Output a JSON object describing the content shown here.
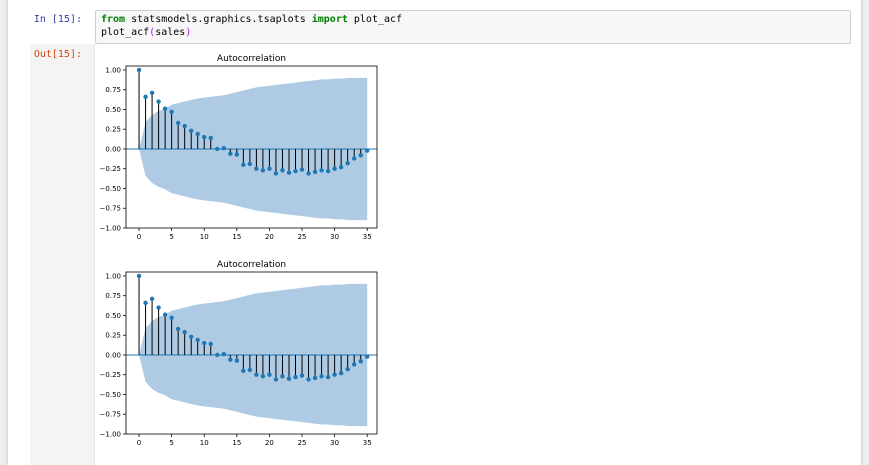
{
  "cell": {
    "in_prompt": "In [15]:",
    "out_prompt": "Out[15]:",
    "code_line1": {
      "kw1": "from",
      "module": " statsmodels.graphics.tsaplots ",
      "kw2": "import",
      "name": " plot_acf"
    },
    "code_line2": {
      "func": "plot_acf",
      "open": "(",
      "arg": "sales",
      "close": ")"
    }
  },
  "chart_data": [
    {
      "type": "stem",
      "title": "Autocorrelation",
      "xlabel": "",
      "ylabel": "",
      "x_ticks": [
        0,
        5,
        10,
        15,
        20,
        25,
        30,
        35
      ],
      "y_ticks": [
        "1.00",
        "0.75",
        "0.50",
        "0.25",
        "0.00",
        "−0.25",
        "−0.50",
        "−0.75",
        "−1.00"
      ],
      "xlim": [
        -2,
        36.5
      ],
      "ylim": [
        -1.0,
        1.05
      ],
      "lags": [
        0,
        1,
        2,
        3,
        4,
        5,
        6,
        7,
        8,
        9,
        10,
        11,
        12,
        13,
        14,
        15,
        16,
        17,
        18,
        19,
        20,
        21,
        22,
        23,
        24,
        25,
        26,
        27,
        28,
        29,
        30,
        31,
        32,
        33,
        34,
        35
      ],
      "values": [
        1.0,
        0.66,
        0.71,
        0.6,
        0.51,
        0.47,
        0.33,
        0.29,
        0.23,
        0.19,
        0.15,
        0.14,
        0.0,
        0.01,
        -0.06,
        -0.07,
        -0.2,
        -0.19,
        -0.25,
        -0.27,
        -0.25,
        -0.31,
        -0.27,
        -0.3,
        -0.28,
        -0.26,
        -0.31,
        -0.29,
        -0.27,
        -0.28,
        -0.25,
        -0.23,
        -0.18,
        -0.12,
        -0.08,
        -0.02
      ],
      "conf_upper": [
        0.0,
        0.34,
        0.43,
        0.48,
        0.51,
        0.56,
        0.58,
        0.6,
        0.62,
        0.64,
        0.65,
        0.66,
        0.67,
        0.68,
        0.7,
        0.72,
        0.74,
        0.76,
        0.78,
        0.79,
        0.8,
        0.81,
        0.82,
        0.83,
        0.84,
        0.85,
        0.86,
        0.87,
        0.88,
        0.88,
        0.89,
        0.89,
        0.9,
        0.9,
        0.9,
        0.9
      ],
      "colors": {
        "stem": "#000000",
        "marker": "#1f77b4",
        "band": "#aecbe3",
        "zero_line": "#1f77b4"
      }
    },
    {
      "type": "stem",
      "title": "Autocorrelation",
      "xlabel": "",
      "ylabel": "",
      "x_ticks": [
        0,
        5,
        10,
        15,
        20,
        25,
        30,
        35
      ],
      "y_ticks": [
        "1.00",
        "0.75",
        "0.50",
        "0.25",
        "0.00",
        "−0.25",
        "−0.50",
        "−0.75",
        "−1.00"
      ],
      "xlim": [
        -2,
        36.5
      ],
      "ylim": [
        -1.0,
        1.05
      ],
      "lags": [
        0,
        1,
        2,
        3,
        4,
        5,
        6,
        7,
        8,
        9,
        10,
        11,
        12,
        13,
        14,
        15,
        16,
        17,
        18,
        19,
        20,
        21,
        22,
        23,
        24,
        25,
        26,
        27,
        28,
        29,
        30,
        31,
        32,
        33,
        34,
        35
      ],
      "values": [
        1.0,
        0.66,
        0.71,
        0.6,
        0.51,
        0.47,
        0.33,
        0.29,
        0.23,
        0.19,
        0.15,
        0.14,
        0.0,
        0.01,
        -0.06,
        -0.07,
        -0.2,
        -0.19,
        -0.25,
        -0.27,
        -0.25,
        -0.31,
        -0.27,
        -0.3,
        -0.28,
        -0.26,
        -0.31,
        -0.29,
        -0.27,
        -0.28,
        -0.25,
        -0.23,
        -0.18,
        -0.12,
        -0.08,
        -0.02
      ],
      "conf_upper": [
        0.0,
        0.34,
        0.43,
        0.48,
        0.51,
        0.56,
        0.58,
        0.6,
        0.62,
        0.64,
        0.65,
        0.66,
        0.67,
        0.68,
        0.7,
        0.72,
        0.74,
        0.76,
        0.78,
        0.79,
        0.8,
        0.81,
        0.82,
        0.83,
        0.84,
        0.85,
        0.86,
        0.87,
        0.88,
        0.88,
        0.89,
        0.89,
        0.9,
        0.9,
        0.9,
        0.9
      ],
      "colors": {
        "stem": "#000000",
        "marker": "#1f77b4",
        "band": "#aecbe3",
        "zero_line": "#1f77b4"
      }
    }
  ]
}
